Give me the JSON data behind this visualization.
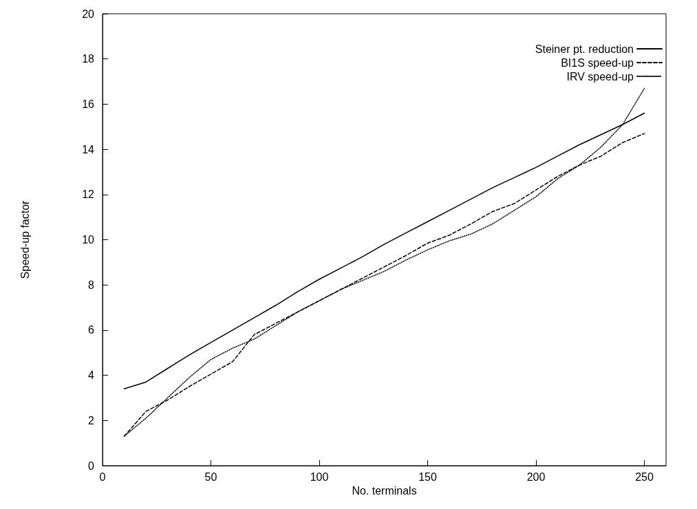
{
  "chart_data": {
    "type": "line",
    "xlabel": "No. terminals",
    "ylabel": "Speed-up factor",
    "x": [
      10,
      20,
      30,
      40,
      50,
      60,
      70,
      80,
      90,
      100,
      110,
      120,
      130,
      140,
      150,
      160,
      170,
      180,
      190,
      200,
      210,
      220,
      230,
      240,
      250
    ],
    "xlim": [
      0,
      260
    ],
    "xticks": [
      0,
      50,
      100,
      150,
      200,
      250
    ],
    "ylim": [
      0,
      20
    ],
    "yticks": [
      0,
      2,
      4,
      6,
      8,
      10,
      12,
      14,
      16,
      18,
      20
    ],
    "grid": false,
    "legend": "top right",
    "marker": "none",
    "series": [
      {
        "name": "Steiner pt. reduction",
        "color": "#000000",
        "line_style": "solid",
        "values": [
          3.4,
          3.7,
          4.3,
          4.9,
          5.45,
          6.0,
          6.55,
          7.1,
          7.7,
          8.25,
          8.75,
          9.25,
          9.8,
          10.3,
          10.8,
          11.3,
          11.8,
          12.3,
          12.75,
          13.2,
          13.7,
          14.2,
          14.65,
          15.1,
          15.6
        ]
      },
      {
        "name": "BI1S speed-up",
        "color": "#000000",
        "line_style": "dashed",
        "values": [
          1.3,
          2.4,
          2.9,
          3.5,
          4.05,
          4.6,
          5.8,
          6.3,
          6.8,
          7.3,
          7.8,
          8.3,
          8.8,
          9.3,
          9.85,
          10.2,
          10.7,
          11.25,
          11.6,
          12.2,
          12.8,
          13.3,
          13.7,
          14.3,
          14.7
        ]
      },
      {
        "name": "IRV speed-up",
        "color": "#000000",
        "line_style": "dotted",
        "values": [
          1.3,
          2.1,
          3.0,
          3.9,
          4.7,
          5.2,
          5.6,
          6.2,
          6.8,
          7.3,
          7.8,
          8.2,
          8.6,
          9.1,
          9.55,
          9.95,
          10.25,
          10.7,
          11.3,
          11.9,
          12.7,
          13.3,
          14.1,
          15.1,
          16.7
        ]
      }
    ]
  }
}
